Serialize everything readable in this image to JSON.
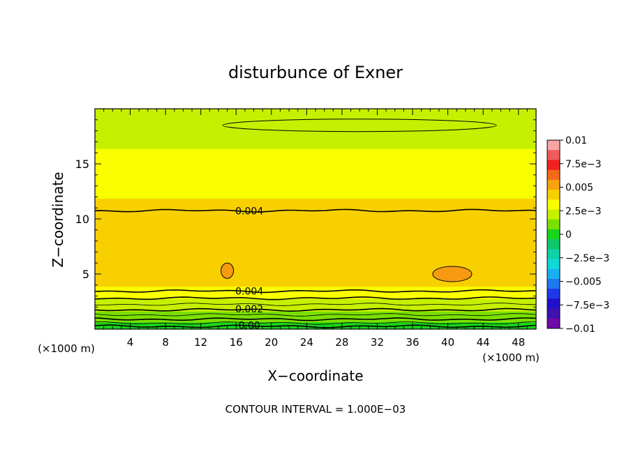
{
  "chart_data": {
    "type": "heatmap",
    "title": "disturbunce of Exner",
    "xlabel": "X−coordinate",
    "ylabel": "Z−coordinate",
    "x_unit_label": "(×1000 m)",
    "x_unit_label_right": "(×1000 m)",
    "footer": "CONTOUR INTERVAL = 1.000E−03",
    "xlim": [
      0,
      50
    ],
    "ylim": [
      0,
      20
    ],
    "x_ticks": [
      "4",
      "8",
      "12",
      "16",
      "20",
      "24",
      "28",
      "32",
      "36",
      "40",
      "44",
      "48"
    ],
    "y_ticks": [
      "5",
      "10",
      "15"
    ],
    "colorbar": {
      "labels": [
        "0.01",
        "7.5e−3",
        "0.005",
        "2.5e−3",
        "0",
        "−2.5e−3",
        "−0.005",
        "−7.5e−3",
        "−0.01"
      ],
      "colors": [
        "#f7a4a4",
        "#f05a5a",
        "#ee2222",
        "#f56a1a",
        "#f7a20e",
        "#f8d000",
        "#faff00",
        "#c6f000",
        "#7ae000",
        "#19d519",
        "#10c86a",
        "#10d0a8",
        "#10d8d8",
        "#18b0f0",
        "#1e78f0",
        "#2038e8",
        "#2010c8",
        "#4010b0",
        "#7008a8"
      ]
    },
    "levels": [
      {
        "z": 0.2,
        "value": -0.0005
      },
      {
        "z": 0.5,
        "value": 0.0003
      },
      {
        "z": 1.0,
        "value": 0.001
      },
      {
        "z": 1.5,
        "value": 0.0015
      },
      {
        "z": 2.0,
        "value": 0.002
      },
      {
        "z": 2.6,
        "value": 0.0025
      },
      {
        "z": 3.3,
        "value": 0.003
      },
      {
        "z": 4.0,
        "value": 0.0038
      },
      {
        "z": 5.5,
        "value": 0.0045
      },
      {
        "z": 7.0,
        "value": 0.0047
      },
      {
        "z": 8.5,
        "value": 0.0043
      },
      {
        "z": 10.0,
        "value": 0.0041
      },
      {
        "z": 11.5,
        "value": 0.0038
      },
      {
        "z": 13.5,
        "value": 0.0031
      },
      {
        "z": 16.0,
        "value": 0.0027
      },
      {
        "z": 18.5,
        "value": 0.0022
      },
      {
        "z": 20.0,
        "value": 0.0025
      }
    ],
    "contour_labels": [
      {
        "text": "0.004",
        "x": 17.5,
        "z": 10.8
      },
      {
        "text": "0.004",
        "x": 17.5,
        "z": 3.5
      },
      {
        "text": "0.002",
        "x": 17.5,
        "z": 1.9
      },
      {
        "text": "0.00",
        "x": 17.5,
        "z": 0.4
      }
    ],
    "features": [
      {
        "kind": "high",
        "x": 15,
        "z": 5.3
      },
      {
        "kind": "high",
        "x": 40.5,
        "z": 5.0
      },
      {
        "kind": "low",
        "x": 30,
        "z": 18.5
      }
    ]
  }
}
